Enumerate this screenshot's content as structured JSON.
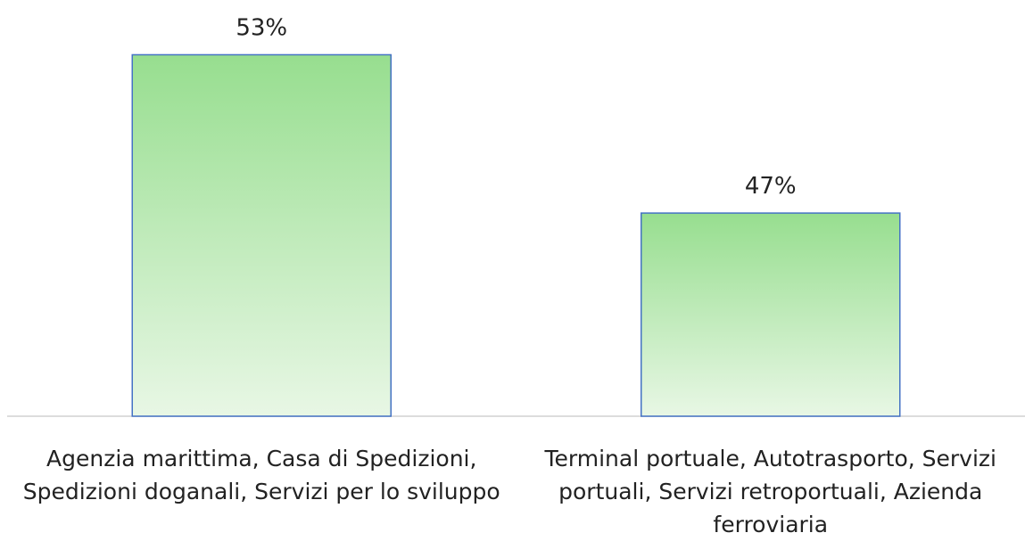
{
  "chart_data": {
    "type": "bar",
    "categories": [
      "Agenzia marittima, Casa di Spedizioni, Spedizioni doganali, Servizi per lo sviluppo",
      "Terminal portuale, Autotrasporto, Servizi portuali, Servizi retroportuali, Azienda ferroviaria"
    ],
    "values": [
      53,
      47
    ],
    "value_labels": [
      "53%",
      "47%"
    ],
    "color": "#97de8f",
    "edge_color": "#4472c4",
    "ylim": [
      39.3,
      54.4
    ]
  }
}
